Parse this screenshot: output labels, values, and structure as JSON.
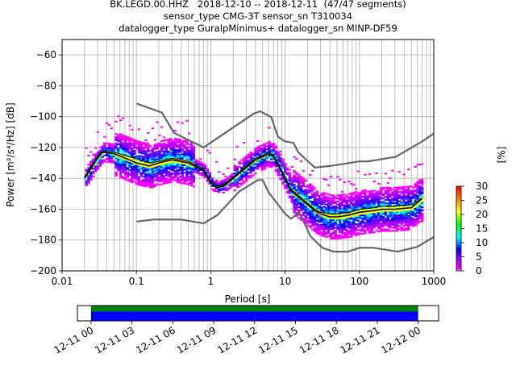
{
  "title_lines": [
    "BK.LEGD.00.HHZ   2018-12-10 -- 2018-12-11  (47/47 segments)",
    "sensor_type CMG-3T sensor_sn T310034",
    "datalogger_type GuralpMinimus+ datalogger_sn MINP-DF59"
  ],
  "chart_data": [
    {
      "type": "heatmap",
      "xlabel": "Period [s]",
      "ylabel": "Power [m²/s⁴/Hz] [dB]",
      "xscale": "log",
      "xlim": [
        0.01,
        1000
      ],
      "ylim": [
        -200,
        -50
      ],
      "xticks": [
        0.01,
        0.1,
        1,
        10,
        100,
        1000
      ],
      "xtick_labels": [
        "0.01",
        "0.1",
        "1",
        "10",
        "100",
        "1000"
      ],
      "yticks": [
        -200,
        -180,
        -160,
        -140,
        -120,
        -100,
        -80,
        -60
      ],
      "ytick_labels": [
        "−200",
        "−180",
        "−160",
        "−140",
        "−120",
        "−100",
        "−80",
        "−60"
      ],
      "grid": true,
      "colorbar": {
        "label": "[%]",
        "range": [
          0,
          30
        ],
        "ticks": [
          0,
          5,
          10,
          15,
          20,
          25,
          30
        ],
        "tick_labels": [
          "0",
          "5",
          "10",
          "15",
          "20",
          "25",
          "30"
        ],
        "colormap": "pqlx"
      },
      "series": [
        {
          "role": "noise_model_high",
          "color": "#666666",
          "x": [
            0.1,
            0.22,
            0.32,
            0.8,
            3.8,
            4.6,
            6.5,
            8,
            10,
            13,
            15,
            25,
            40,
            100,
            130,
            310,
            700,
            1000
          ],
          "y": [
            -91.5,
            -97.4,
            -110.5,
            -120,
            -98,
            -96.5,
            -100.3,
            -113,
            -116,
            -117,
            -123,
            -133,
            -132,
            -129,
            -129,
            -126,
            -116,
            -111
          ]
        },
        {
          "role": "noise_model_low",
          "color": "#666666",
          "x": [
            0.1,
            0.17,
            0.4,
            0.8,
            1.24,
            2.4,
            4.3,
            5,
            6,
            10,
            12,
            15.6,
            21.9,
            31.6,
            45,
            70,
            101,
            154,
            328,
            600,
            1000
          ],
          "y": [
            -168,
            -166.7,
            -166.7,
            -169.2,
            -163.7,
            -148.6,
            -141.1,
            -141.1,
            -149,
            -163,
            -166.2,
            -162.1,
            -177.5,
            -185,
            -187.5,
            -187.5,
            -185,
            -185,
            -187.5,
            -184.4,
            -178
          ]
        },
        {
          "role": "mode",
          "color": "#000000",
          "x": [
            0.02,
            0.025,
            0.03,
            0.035,
            0.05,
            0.08,
            0.1,
            0.15,
            0.2,
            0.3,
            0.5,
            0.8,
            1.0,
            1.2,
            1.5,
            2,
            3,
            4,
            5,
            6,
            7,
            8,
            10,
            12,
            15,
            20,
            25,
            30,
            40,
            50,
            70,
            100,
            150,
            200,
            300,
            500,
            700
          ],
          "y": [
            -140,
            -133,
            -127,
            -123,
            -124,
            -128,
            -130,
            -132,
            -130,
            -128,
            -130,
            -135,
            -143,
            -146,
            -145,
            -140,
            -133,
            -128,
            -126,
            -124,
            -126,
            -131,
            -140,
            -148,
            -152,
            -157,
            -161,
            -163,
            -165,
            -165,
            -164,
            -162,
            -161,
            -160,
            -160,
            -159,
            -153
          ]
        },
        {
          "role": "mean",
          "color": "#111111",
          "x": [
            0.02,
            0.025,
            0.03,
            0.035,
            0.05,
            0.08,
            0.1,
            0.15,
            0.2,
            0.3,
            0.5,
            0.8,
            1.0,
            1.2,
            1.5,
            2,
            3,
            4,
            5,
            6,
            7,
            8,
            10,
            12,
            15,
            20,
            25,
            30,
            40,
            50,
            70,
            100,
            150,
            200,
            300,
            500,
            700
          ],
          "y": [
            -139,
            -132,
            -126,
            -122,
            -123,
            -126,
            -127,
            -130,
            -129,
            -127,
            -129,
            -134,
            -142,
            -145,
            -144,
            -139,
            -132,
            -127,
            -125,
            -123,
            -125,
            -130,
            -139,
            -147,
            -151,
            -156,
            -160,
            -162,
            -163,
            -163,
            -162,
            -160,
            -159,
            -158,
            -158,
            -157,
            -153
          ]
        }
      ]
    },
    {
      "type": "timeline",
      "xlim": [
        "2018-12-10T23:00",
        "2018-12-12T01:30"
      ],
      "xtick_labels": [
        "12-11 00",
        "12-11 03",
        "12-11 06",
        "12-11 09",
        "12-11 12",
        "12-11 15",
        "12-11 18",
        "12-11 21",
        "12-12 00"
      ],
      "segments": [
        {
          "start": "2018-12-11T00:00",
          "end": "2018-12-12T00:00",
          "color": "#008000",
          "row": "top"
        },
        {
          "start": "2018-12-11T00:00",
          "end": "2018-12-12T00:00",
          "color": "#0000ff",
          "row": "bottom"
        }
      ]
    }
  ]
}
